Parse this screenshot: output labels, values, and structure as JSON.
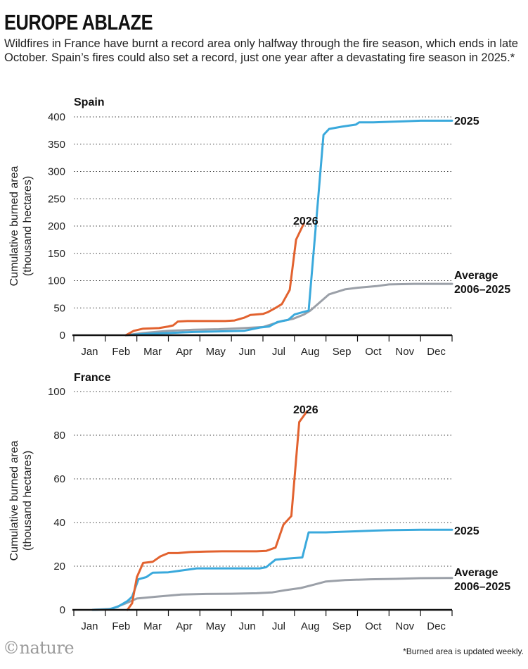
{
  "header": {
    "title": "EUROPE ABLAZE",
    "subtitle": "Wildfires in France have burnt a record area only halfway through the fire season, which ends in late October. Spain’s fires could also set a record, just one year after a devastating fire season in 2025.*"
  },
  "footer": {
    "footnote": "*Burned area is updated weekly.",
    "logo": "©nature"
  },
  "colors": {
    "2026": "#e2622f",
    "2025": "#3aa9dc",
    "average": "#9ba0a8",
    "grid": "#444444",
    "axis": "#111111"
  },
  "chart_data": [
    {
      "type": "line",
      "title": "Spain",
      "ylabel": "Cumulative burned area (thousand hectares)",
      "ylabel_lines": [
        "Cumulative burned area",
        "(thousand hectares)"
      ],
      "x_unit": "month",
      "xlim": [
        0,
        12
      ],
      "ylim": [
        0,
        400
      ],
      "yticks": [
        0,
        50,
        100,
        150,
        200,
        250,
        300,
        350,
        400
      ],
      "categories": [
        "Jan",
        "Feb",
        "Mar",
        "Apr",
        "May",
        "Jun",
        "Jul",
        "Aug",
        "Sep",
        "Oct",
        "Nov",
        "Dec"
      ],
      "grid": true,
      "series": [
        {
          "name": "Average 2006–2025",
          "label_lines": [
            "Average",
            "2006–2025"
          ],
          "color": "#9ba0a8",
          "points": [
            [
              1.65,
              0
            ],
            [
              2.2,
              4
            ],
            [
              3,
              8
            ],
            [
              3.8,
              10
            ],
            [
              4.6,
              11
            ],
            [
              5.4,
              13
            ],
            [
              6.0,
              15
            ],
            [
              6.6,
              26
            ],
            [
              6.95,
              30
            ],
            [
              7.3,
              38
            ],
            [
              7.5,
              45
            ],
            [
              7.8,
              60
            ],
            [
              8.1,
              75
            ],
            [
              8.6,
              84
            ],
            [
              9.0,
              87
            ],
            [
              9.6,
              90
            ],
            [
              10.0,
              93
            ],
            [
              10.8,
              94
            ],
            [
              11.5,
              94
            ],
            [
              12,
              94
            ]
          ]
        },
        {
          "name": "2025",
          "label_lines": [
            "2025"
          ],
          "color": "#3aa9dc",
          "points": [
            [
              1.65,
              0
            ],
            [
              2.2,
              2
            ],
            [
              3,
              4
            ],
            [
              3.8,
              6
            ],
            [
              4.6,
              7
            ],
            [
              5.4,
              8
            ],
            [
              5.9,
              14
            ],
            [
              6.2,
              16
            ],
            [
              6.45,
              24
            ],
            [
              6.7,
              27
            ],
            [
              6.8,
              28
            ],
            [
              7.0,
              38
            ],
            [
              7.25,
              42
            ],
            [
              7.45,
              45
            ],
            [
              7.75,
              250
            ],
            [
              7.92,
              367
            ],
            [
              8.1,
              378
            ],
            [
              8.5,
              382
            ],
            [
              8.95,
              386
            ],
            [
              9.05,
              390
            ],
            [
              9.5,
              390
            ],
            [
              10.0,
              391
            ],
            [
              10.5,
              392
            ],
            [
              11.0,
              393
            ],
            [
              12,
              393
            ]
          ]
        },
        {
          "name": "2026",
          "label_lines": [
            "2026"
          ],
          "color": "#e2622f",
          "points": [
            [
              1.65,
              0
            ],
            [
              1.9,
              8
            ],
            [
              2.2,
              12
            ],
            [
              2.7,
              13
            ],
            [
              3.0,
              16
            ],
            [
              3.15,
              18
            ],
            [
              3.3,
              25
            ],
            [
              3.6,
              26
            ],
            [
              4.2,
              26
            ],
            [
              4.8,
              26
            ],
            [
              5.1,
              27
            ],
            [
              5.4,
              32
            ],
            [
              5.6,
              37
            ],
            [
              6.0,
              39
            ],
            [
              6.15,
              42
            ],
            [
              6.4,
              50
            ],
            [
              6.6,
              57
            ],
            [
              6.85,
              83
            ],
            [
              7.05,
              175
            ],
            [
              7.3,
              205
            ]
          ]
        }
      ]
    },
    {
      "type": "line",
      "title": "France",
      "ylabel": "Cumulative burned area (thousand hectares)",
      "ylabel_lines": [
        "Cumulative burned area",
        "(thousand hectares)"
      ],
      "x_unit": "month",
      "xlim": [
        0,
        12
      ],
      "ylim": [
        0,
        100
      ],
      "yticks": [
        0,
        20,
        40,
        60,
        80,
        100
      ],
      "categories": [
        "Jan",
        "Feb",
        "Mar",
        "Apr",
        "May",
        "Jun",
        "Jul",
        "Aug",
        "Sep",
        "Oct",
        "Nov",
        "Dec"
      ],
      "grid": true,
      "series": [
        {
          "name": "Average 2006–2025",
          "label_lines": [
            "Average",
            "2006–2025"
          ],
          "color": "#9ba0a8",
          "points": [
            [
              0.6,
              0
            ],
            [
              1.2,
              0.5
            ],
            [
              1.65,
              3
            ],
            [
              2.0,
              5.2
            ],
            [
              2.6,
              6
            ],
            [
              3.4,
              7
            ],
            [
              4.2,
              7.3
            ],
            [
              5.0,
              7.4
            ],
            [
              5.8,
              7.6
            ],
            [
              6.3,
              8
            ],
            [
              6.7,
              9
            ],
            [
              7.2,
              10
            ],
            [
              7.6,
              11.5
            ],
            [
              8.0,
              13
            ],
            [
              8.6,
              13.6
            ],
            [
              9.4,
              14
            ],
            [
              10.2,
              14.2
            ],
            [
              11.0,
              14.5
            ],
            [
              12,
              14.6
            ]
          ]
        },
        {
          "name": "2025",
          "label_lines": [
            "2025"
          ],
          "color": "#3aa9dc",
          "points": [
            [
              0.6,
              0
            ],
            [
              1.1,
              0.2
            ],
            [
              1.4,
              1.5
            ],
            [
              1.7,
              4
            ],
            [
              1.85,
              6
            ],
            [
              2.05,
              14
            ],
            [
              2.3,
              15
            ],
            [
              2.5,
              17
            ],
            [
              3.0,
              17.2
            ],
            [
              3.5,
              18.2
            ],
            [
              3.9,
              19
            ],
            [
              4.6,
              19
            ],
            [
              5.3,
              19
            ],
            [
              5.9,
              19
            ],
            [
              6.1,
              19.5
            ],
            [
              6.4,
              23
            ],
            [
              6.8,
              23.5
            ],
            [
              7.25,
              24
            ],
            [
              7.45,
              35.5
            ],
            [
              8.0,
              35.5
            ],
            [
              8.6,
              35.8
            ],
            [
              9.0,
              36
            ],
            [
              9.5,
              36.3
            ],
            [
              10.0,
              36.5
            ],
            [
              11.0,
              36.7
            ],
            [
              12,
              36.7
            ]
          ]
        },
        {
          "name": "2026",
          "label_lines": [
            "2026"
          ],
          "color": "#e2622f",
          "points": [
            [
              1.7,
              0
            ],
            [
              1.85,
              3
            ],
            [
              2.0,
              15
            ],
            [
              2.2,
              21.5
            ],
            [
              2.5,
              22
            ],
            [
              2.75,
              24.5
            ],
            [
              3.0,
              26
            ],
            [
              3.3,
              26
            ],
            [
              3.7,
              26.5
            ],
            [
              4.2,
              26.7
            ],
            [
              4.7,
              26.8
            ],
            [
              5.3,
              26.8
            ],
            [
              5.8,
              26.8
            ],
            [
              6.1,
              27
            ],
            [
              6.4,
              28.5
            ],
            [
              6.65,
              39
            ],
            [
              6.9,
              43
            ],
            [
              7.15,
              86
            ],
            [
              7.4,
              91
            ]
          ]
        }
      ]
    }
  ]
}
